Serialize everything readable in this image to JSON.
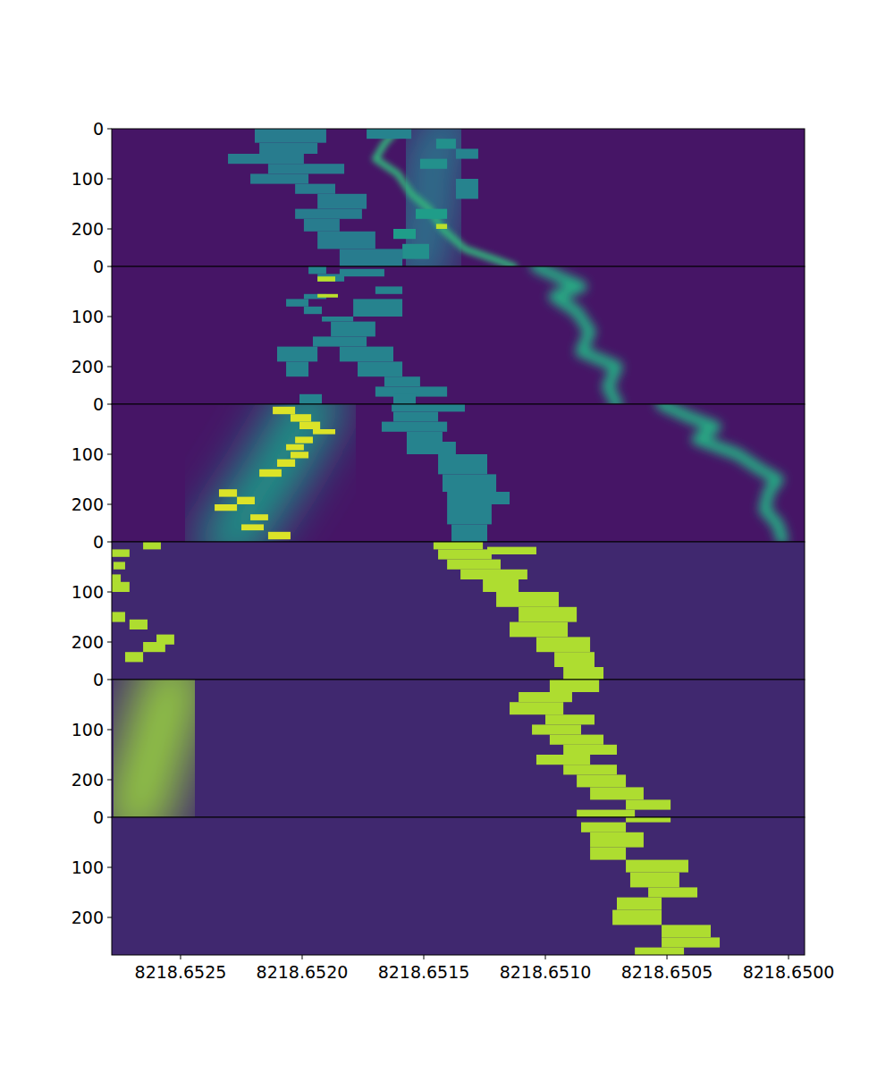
{
  "chart_data": {
    "type": "heatmap",
    "xlim": [
      8218.652783,
      8218.649934
    ],
    "xticks": [
      8218.6525,
      {
        "value": 8218.652,
        "label": "8218.6520"
      },
      8218.6515,
      {
        "value": 8218.651,
        "label": "8218.6510"
      },
      8218.6505,
      {
        "value": 8218.65,
        "label": "8218.6500"
      }
    ],
    "ylim": [
      0,
      275
    ],
    "yticks": [
      0,
      100,
      200
    ],
    "zlim": [
      0,
      1
    ],
    "panels": [
      {
        "ridges": [
          {
            "t": [
              0,
              70,
              140,
              200,
              275
            ],
            "f": [
              8218.651404,
              8218.651478,
              8218.65146,
              8218.651496,
              8218.651515
            ],
            "width": 0.00033,
            "z": 0.4
          },
          {
            "t": [
              0,
              30,
              60,
              90,
              130,
              160,
              200,
              240,
              265,
              275
            ],
            "f": [
              8218.651607,
              8218.651662,
              8218.651699,
              8218.651607,
              8218.651551,
              8218.651478,
              8218.651423,
              8218.651331,
              8218.651184,
              8218.651129
            ],
            "width": 4e-05,
            "z": 0.65
          }
        ],
        "cells": [
          [
            0,
            28,
            8218.652195,
            8218.651901,
            0.42
          ],
          [
            28,
            50,
            8218.652176,
            8218.651937,
            0.42
          ],
          [
            50,
            70,
            8218.652305,
            8218.651993,
            0.42
          ],
          [
            70,
            90,
            8218.65214,
            8218.651827,
            0.42
          ],
          [
            90,
            110,
            8218.652213,
            8218.651974,
            0.42
          ],
          [
            110,
            130,
            8218.652029,
            8218.651864,
            0.42
          ],
          [
            130,
            160,
            8218.651937,
            8218.651735,
            0.42
          ],
          [
            160,
            180,
            8218.652029,
            8218.651754,
            0.42
          ],
          [
            180,
            205,
            8218.651993,
            8218.651846,
            0.42
          ],
          [
            205,
            240,
            8218.651937,
            8218.651699,
            0.42
          ],
          [
            240,
            275,
            8218.651846,
            8218.651588,
            0.42
          ],
          [
            0,
            20,
            8218.651735,
            8218.651551,
            0.45
          ],
          [
            20,
            40,
            8218.651449,
            8218.651368,
            0.5
          ],
          [
            40,
            60,
            8218.651368,
            8218.651276,
            0.45
          ],
          [
            60,
            80,
            8218.651515,
            8218.651404,
            0.5
          ],
          [
            100,
            140,
            8218.651368,
            8218.651276,
            0.45
          ],
          [
            160,
            180,
            8218.651533,
            8218.651404,
            0.55
          ],
          [
            200,
            220,
            8218.651625,
            8218.651533,
            0.55
          ],
          [
            230,
            260,
            8218.651588,
            8218.651478,
            0.5
          ],
          [
            190,
            200,
            8218.651449,
            8218.651404,
            0.9
          ]
        ]
      },
      {
        "ridges": [
          {
            "t": [
              0,
              25,
              40,
              60,
              90,
              130,
              170,
              200,
              240,
              275
            ],
            "f": [
              8218.651037,
              8218.650926,
              8218.650853,
              8218.650963,
              8218.650871,
              8218.650816,
              8218.650853,
              8218.650706,
              8218.650743,
              8218.650706
            ],
            "width": 7e-05,
            "z": 0.6
          }
        ],
        "cells": [
          [
            0,
            15,
            8218.651974,
            8218.651901,
            0.45
          ],
          [
            5,
            20,
            8218.651846,
            8218.651662,
            0.45
          ],
          [
            15,
            30,
            8218.651937,
            8218.651827,
            0.45
          ],
          [
            20,
            30,
            8218.651937,
            8218.651864,
            0.9
          ],
          [
            40,
            55,
            8218.651699,
            8218.651588,
            0.45
          ],
          [
            55,
            65,
            8218.651993,
            8218.651901,
            0.45
          ],
          [
            55,
            62,
            8218.651937,
            8218.651853,
            0.9
          ],
          [
            65,
            100,
            8218.65179,
            8218.651588,
            0.45
          ],
          [
            65,
            80,
            8218.652066,
            8218.651974,
            0.45
          ],
          [
            80,
            95,
            8218.651993,
            8218.651919,
            0.45
          ],
          [
            100,
            110,
            8218.651919,
            8218.65179,
            0.45
          ],
          [
            110,
            140,
            8218.651882,
            8218.651699,
            0.45
          ],
          [
            140,
            160,
            8218.651956,
            8218.651735,
            0.45
          ],
          [
            160,
            190,
            8218.652103,
            8218.651937,
            0.45
          ],
          [
            160,
            190,
            8218.651846,
            8218.651625,
            0.45
          ],
          [
            190,
            220,
            8218.652066,
            8218.651974,
            0.45
          ],
          [
            190,
            220,
            8218.651772,
            8218.651588,
            0.45
          ],
          [
            220,
            240,
            8218.651662,
            8218.651515,
            0.45
          ],
          [
            240,
            260,
            8218.651699,
            8218.651404,
            0.45
          ],
          [
            255,
            275,
            8218.652011,
            8218.651919,
            0.45
          ],
          [
            255,
            275,
            8218.651625,
            8218.651533,
            0.45
          ]
        ]
      },
      {
        "ridges": [
          {
            "t": [
              0,
              140,
              275
            ],
            "f": [
              8218.651956,
              8218.652121,
              8218.652305
            ],
            "width": 0.00035,
            "z": 0.55
          },
          {
            "t": [
              0,
              25,
              45,
              70,
              100,
              130,
              150,
              175,
              210,
              240,
              270
            ],
            "f": [
              8218.650522,
              8218.650412,
              8218.650301,
              8218.650375,
              8218.65021,
              8218.650118,
              8218.650044,
              8218.650081,
              8218.650099,
              8218.650044,
              8218.650026
            ],
            "width": 7e-05,
            "z": 0.6
          }
        ],
        "cells": [
          [
            5,
            20,
            8218.652121,
            8218.652029,
            0.95
          ],
          [
            20,
            35,
            8218.652048,
            8218.651963,
            0.95
          ],
          [
            35,
            50,
            8218.652011,
            8218.651926,
            0.95
          ],
          [
            50,
            60,
            8218.651956,
            8218.651864,
            0.95
          ],
          [
            65,
            78,
            8218.652029,
            8218.651956,
            0.95
          ],
          [
            80,
            92,
            8218.652066,
            8218.651993,
            0.95
          ],
          [
            95,
            108,
            8218.652048,
            8218.651974,
            0.95
          ],
          [
            110,
            125,
            8218.652103,
            8218.652029,
            0.95
          ],
          [
            130,
            145,
            8218.652176,
            8218.652085,
            0.95
          ],
          [
            170,
            185,
            8218.652342,
            8218.652268,
            0.95
          ],
          [
            185,
            200,
            8218.652268,
            8218.652195,
            0.95
          ],
          [
            200,
            213,
            8218.65236,
            8218.652268,
            0.95
          ],
          [
            220,
            232,
            8218.652213,
            8218.65214,
            0.95
          ],
          [
            240,
            252,
            8218.65225,
            8218.652158,
            0.95
          ],
          [
            255,
            270,
            8218.65214,
            8218.652048,
            0.95
          ],
          [
            0,
            15,
            8218.651632,
            8218.651331,
            0.45
          ],
          [
            15,
            35,
            8218.651625,
            8218.651441,
            0.45
          ],
          [
            35,
            55,
            8218.651673,
            8218.651404,
            0.45
          ],
          [
            55,
            75,
            8218.65157,
            8218.651423,
            0.45
          ],
          [
            75,
            100,
            8218.65157,
            8218.651368,
            0.45
          ],
          [
            100,
            140,
            8218.651441,
            8218.651239,
            0.45
          ],
          [
            140,
            175,
            8218.651423,
            8218.651202,
            0.45
          ],
          [
            175,
            200,
            8218.651404,
            8218.651147,
            0.45
          ],
          [
            200,
            240,
            8218.651404,
            8218.651221,
            0.45
          ],
          [
            240,
            275,
            8218.651386,
            8218.651239,
            0.45
          ]
        ]
      },
      {
        "cells": [
          [
            0,
            15,
            8218.65146,
            8218.651257,
            0.88
          ],
          [
            10,
            25,
            8218.651239,
            8218.651037,
            0.88
          ],
          [
            15,
            35,
            8218.651441,
            8218.651221,
            0.88
          ],
          [
            35,
            55,
            8218.651404,
            8218.651184,
            0.88
          ],
          [
            55,
            75,
            8218.651349,
            8218.651074,
            0.88
          ],
          [
            75,
            100,
            8218.651257,
            8218.65111,
            0.88
          ],
          [
            100,
            130,
            8218.651202,
            8218.650945,
            0.88
          ],
          [
            130,
            160,
            8218.65111,
            8218.650871,
            0.88
          ],
          [
            160,
            190,
            8218.651147,
            8218.650908,
            0.88
          ],
          [
            190,
            220,
            8218.651037,
            8218.650816,
            0.88
          ],
          [
            220,
            250,
            8218.650963,
            8218.650798,
            0.88
          ],
          [
            250,
            275,
            8218.650926,
            8218.650761,
            0.88
          ],
          [
            0,
            15,
            8218.652654,
            8218.652581,
            0.88
          ],
          [
            15,
            30,
            8218.652783,
            8218.65271,
            0.88
          ],
          [
            40,
            55,
            8218.652776,
            8218.652728,
            0.88
          ],
          [
            65,
            85,
            8218.652783,
            8218.652746,
            0.88
          ],
          [
            80,
            100,
            8218.652783,
            8218.65271,
            0.88
          ],
          [
            140,
            160,
            8218.652783,
            8218.652728,
            0.88
          ],
          [
            155,
            175,
            8218.65271,
            8218.652636,
            0.88
          ],
          [
            185,
            205,
            8218.652599,
            8218.652526,
            0.88
          ],
          [
            200,
            220,
            8218.652654,
            8218.652563,
            0.88
          ],
          [
            220,
            240,
            8218.652728,
            8218.652654,
            0.88
          ]
        ]
      },
      {
        "ridges": [
          {
            "t": [
              0,
              275
            ],
            "f": [
              8218.652526,
              8218.652691
            ],
            "width": 0.0004,
            "z": 0.85
          }
        ],
        "cells": [
          [
            0,
            25,
            8218.650982,
            8218.650779,
            0.88
          ],
          [
            25,
            45,
            8218.65111,
            8218.65089,
            0.88
          ],
          [
            45,
            70,
            8218.651147,
            8218.650926,
            0.88
          ],
          [
            70,
            90,
            8218.651,
            8218.650798,
            0.88
          ],
          [
            90,
            110,
            8218.651055,
            8218.650853,
            0.88
          ],
          [
            110,
            130,
            8218.650982,
            8218.650761,
            0.88
          ],
          [
            130,
            150,
            8218.650926,
            8218.650706,
            0.88
          ],
          [
            150,
            170,
            8218.651037,
            8218.650816,
            0.88
          ],
          [
            170,
            190,
            8218.650926,
            8218.650706,
            0.88
          ],
          [
            190,
            215,
            8218.650871,
            8218.650669,
            0.88
          ],
          [
            215,
            240,
            8218.650816,
            8218.650596,
            0.88
          ],
          [
            240,
            260,
            8218.650669,
            8218.650485,
            0.88
          ],
          [
            260,
            275,
            8218.650871,
            8218.650632,
            0.88
          ]
        ]
      },
      {
        "cells": [
          [
            0,
            10,
            8218.650669,
            8218.650485,
            0.88
          ],
          [
            10,
            30,
            8218.650853,
            8218.650669,
            0.88
          ],
          [
            30,
            60,
            8218.650816,
            8218.650596,
            0.88
          ],
          [
            60,
            85,
            8218.650816,
            8218.650669,
            0.88
          ],
          [
            85,
            110,
            8218.650669,
            8218.650412,
            0.88
          ],
          [
            110,
            140,
            8218.650651,
            8218.650449,
            0.88
          ],
          [
            140,
            160,
            8218.650577,
            8218.650375,
            0.88
          ],
          [
            160,
            185,
            8218.650706,
            8218.650522,
            0.88
          ],
          [
            185,
            215,
            8218.650724,
            8218.650522,
            0.88
          ],
          [
            215,
            240,
            8218.650522,
            8218.65032,
            0.88
          ],
          [
            240,
            260,
            8218.650522,
            8218.650283,
            0.88
          ],
          [
            260,
            275,
            8218.650632,
            8218.65043,
            0.88
          ]
        ]
      }
    ]
  }
}
